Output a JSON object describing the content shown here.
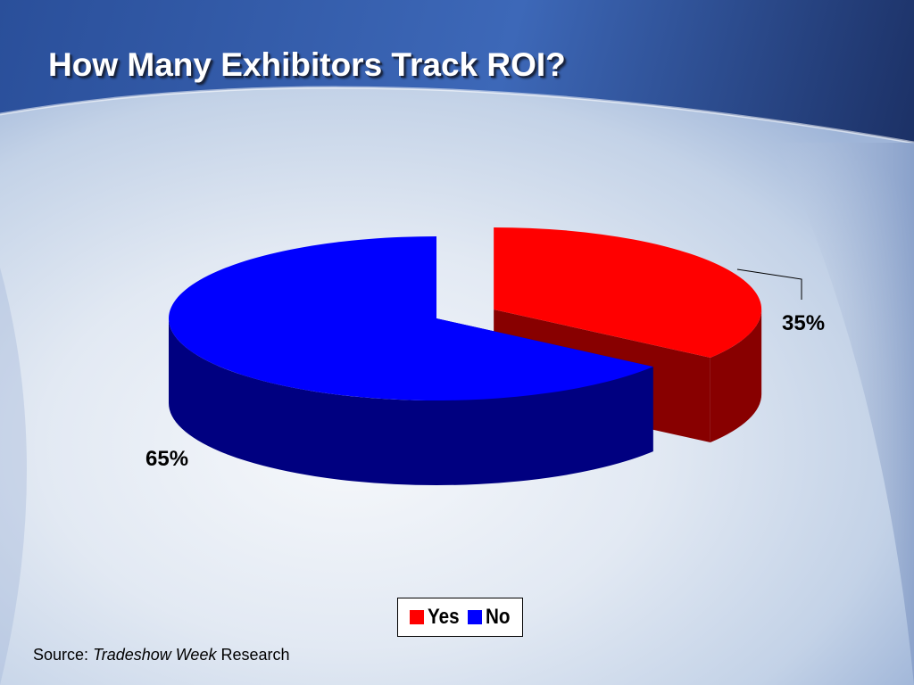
{
  "slide": {
    "title": "How Many Exhibitors Track ROI?",
    "source_prefix": "Source:",
    "source_publication": "Tradeshow Week",
    "source_suffix": "Research"
  },
  "colors": {
    "yes_top": "#ff0000",
    "yes_side": "#880000",
    "no_top": "#0000ff",
    "no_side": "#000080"
  },
  "chart_data": {
    "type": "pie",
    "title": "How Many Exhibitors Track ROI?",
    "style": "3d-exploded",
    "categories": [
      "Yes",
      "No"
    ],
    "values": [
      35,
      65
    ],
    "unit": "%",
    "labels": [
      "35%",
      "65%"
    ],
    "legend": {
      "position": "bottom",
      "entries": [
        "Yes",
        "No"
      ]
    }
  }
}
